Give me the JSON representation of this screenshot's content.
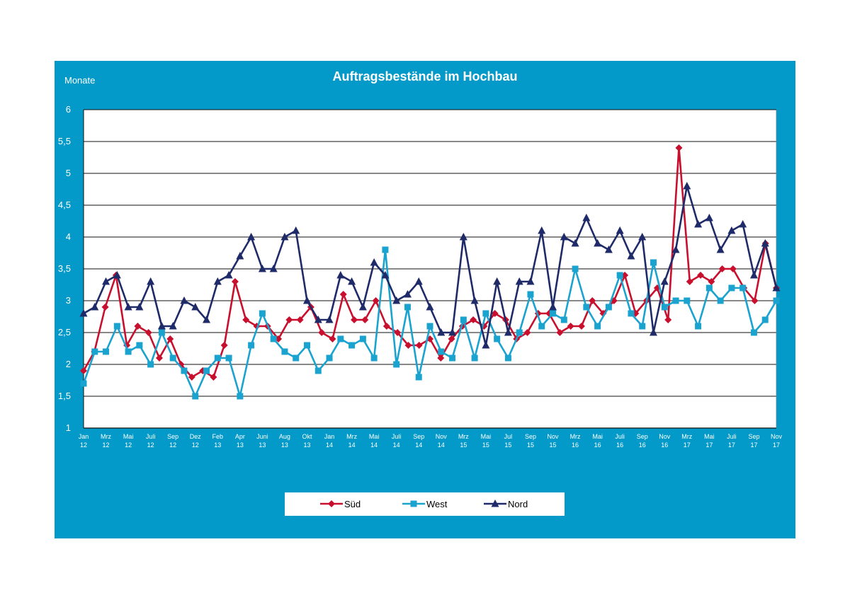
{
  "chart_data": {
    "type": "line",
    "title": "Auftragsbestände im Hochbau",
    "ylabel": "Monate",
    "xlabel": "",
    "ylim": [
      1,
      6
    ],
    "yticks": [
      "1",
      "1,5",
      "2",
      "2,5",
      "3",
      "3,5",
      "4",
      "4,5",
      "5",
      "5,5",
      "6"
    ],
    "grid": true,
    "legend_position": "bottom",
    "background": "#0399c9",
    "x_labels": [
      [
        "Jan",
        "12"
      ],
      [
        "Mrz",
        "12"
      ],
      [
        "Mai",
        "12"
      ],
      [
        "Juli",
        "12"
      ],
      [
        "Sep",
        "12"
      ],
      [
        "Dez",
        "12"
      ],
      [
        "Feb",
        "13"
      ],
      [
        "Apr",
        "13"
      ],
      [
        "Juni",
        "13"
      ],
      [
        "Aug",
        "13"
      ],
      [
        "Okt",
        "13"
      ],
      [
        "Jan",
        "14"
      ],
      [
        "Mrz",
        "14"
      ],
      [
        "Mai",
        "14"
      ],
      [
        "Juli",
        "14"
      ],
      [
        "Sep",
        "14"
      ],
      [
        "Nov",
        "14"
      ],
      [
        "Mrz",
        "15"
      ],
      [
        "Mai",
        "15"
      ],
      [
        "Jul",
        "15"
      ],
      [
        "Sep",
        "15"
      ],
      [
        "Nov",
        "15"
      ],
      [
        "Mrz",
        "16"
      ],
      [
        "Mai",
        "16"
      ],
      [
        "Juli",
        "16"
      ],
      [
        "Sep",
        "16"
      ],
      [
        "Nov",
        "16"
      ],
      [
        "Mrz",
        "17"
      ],
      [
        "Mai",
        "17"
      ],
      [
        "Juli",
        "17"
      ],
      [
        "Sep",
        "17"
      ],
      [
        "Nov",
        "17"
      ]
    ],
    "series": [
      {
        "name": "Süd",
        "color": "#c8102e",
        "marker": "diamond",
        "values": [
          1.9,
          2.2,
          2.9,
          3.4,
          2.3,
          2.6,
          2.5,
          2.1,
          2.4,
          2.0,
          1.8,
          1.9,
          1.8,
          2.3,
          3.3,
          2.7,
          2.6,
          2.6,
          2.4,
          2.7,
          2.7,
          2.9,
          2.5,
          2.4,
          3.1,
          2.7,
          2.7,
          3.0,
          2.6,
          2.5,
          2.3,
          2.3,
          2.4,
          2.1,
          2.4,
          2.6,
          2.7,
          2.6,
          2.8,
          2.7,
          2.4,
          2.5,
          2.8,
          2.8,
          2.5,
          2.6,
          2.6,
          3.0,
          2.8,
          3.0,
          3.4,
          2.8,
          3.0,
          3.2,
          2.7,
          5.4,
          3.3,
          3.4,
          3.3,
          3.5,
          3.5,
          3.2,
          3.0,
          3.9,
          3.2
        ]
      },
      {
        "name": "West",
        "color": "#1aa3cf",
        "marker": "square",
        "values": [
          1.7,
          2.2,
          2.2,
          2.6,
          2.2,
          2.3,
          2.0,
          2.5,
          2.1,
          1.9,
          1.5,
          1.9,
          2.1,
          2.1,
          1.5,
          2.3,
          2.8,
          2.4,
          2.2,
          2.1,
          2.3,
          1.9,
          2.1,
          2.4,
          2.3,
          2.4,
          2.1,
          3.8,
          2.0,
          2.9,
          1.8,
          2.6,
          2.2,
          2.1,
          2.7,
          2.1,
          2.8,
          2.4,
          2.1,
          2.5,
          3.1,
          2.6,
          2.8,
          2.7,
          3.5,
          2.9,
          2.6,
          2.9,
          3.4,
          2.8,
          2.6,
          3.6,
          2.9,
          3.0,
          3.0,
          2.6,
          3.2,
          3.0,
          3.2,
          3.2,
          2.5,
          2.7,
          3.0
        ]
      },
      {
        "name": "Nord",
        "color": "#1f2a68",
        "marker": "triangle",
        "values": [
          2.8,
          2.9,
          3.3,
          3.4,
          2.9,
          2.9,
          3.3,
          2.6,
          2.6,
          3.0,
          2.9,
          2.7,
          3.3,
          3.4,
          3.7,
          4.0,
          3.5,
          3.5,
          4.0,
          4.1,
          3.0,
          2.7,
          2.7,
          3.4,
          3.3,
          2.9,
          3.6,
          3.4,
          3.0,
          3.1,
          3.3,
          2.9,
          2.5,
          2.5,
          4.0,
          3.0,
          2.3,
          3.3,
          2.5,
          3.3,
          3.3,
          4.1,
          2.9,
          4.0,
          3.9,
          4.3,
          3.9,
          3.8,
          4.1,
          3.7,
          4.0,
          2.5,
          3.3,
          3.8,
          4.8,
          4.2,
          4.3,
          3.8,
          4.1,
          4.2,
          3.4,
          3.9,
          3.2
        ]
      }
    ]
  }
}
